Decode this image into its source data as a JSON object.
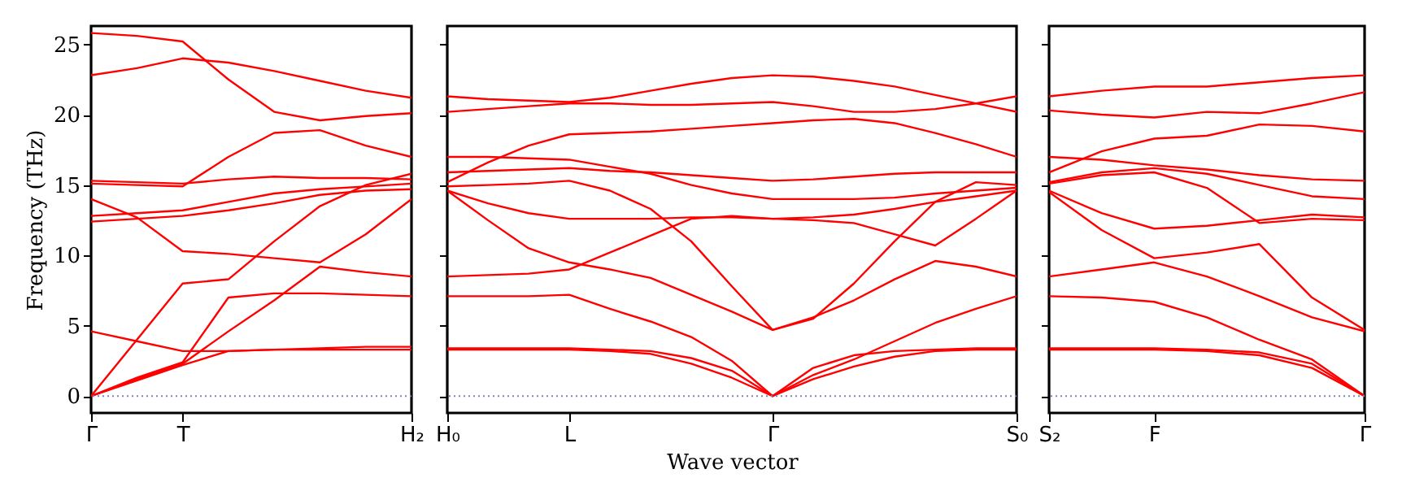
{
  "chart_data": [
    {
      "type": "line",
      "ylabel": "Frequency (THz)",
      "categories": [
        "Γ",
        null,
        "T",
        null,
        null,
        null,
        null,
        "H₂"
      ],
      "ylim": [
        -1.2,
        26.3
      ],
      "yticks": [
        0,
        5,
        10,
        15,
        20,
        25
      ],
      "ref_lines": [
        {
          "axis": "y",
          "value": 0,
          "color": "#8080c0",
          "line_style": "dotted"
        }
      ],
      "series": [
        {
          "color": "#ff0000",
          "values": [
            0,
            1.1,
            2.2,
            3.2,
            3.3,
            3.3,
            3.3,
            3.3
          ]
        },
        {
          "color": "#ff0000",
          "values": [
            0,
            1.2,
            2.3,
            4.6,
            6.8,
            9.2,
            8.8,
            8.5
          ]
        },
        {
          "color": "#ff0000",
          "values": [
            0,
            4.0,
            8.0,
            8.3,
            11.0,
            13.5,
            15.0,
            15.8
          ]
        },
        {
          "color": "#ff0000",
          "values": [
            4.6,
            3.9,
            3.2,
            3.2,
            3.3,
            3.4,
            3.5,
            3.5
          ]
        },
        {
          "color": "#ff0000",
          "values": [
            0,
            1.3,
            2.4,
            7.0,
            7.3,
            7.3,
            7.2,
            7.1
          ]
        },
        {
          "color": "#ff0000",
          "values": [
            14.0,
            12.7,
            10.3,
            10.1,
            9.8,
            9.5,
            11.5,
            14.0
          ]
        },
        {
          "color": "#ff0000",
          "values": [
            12.4,
            12.6,
            12.8,
            13.2,
            13.7,
            14.3,
            14.6,
            14.7
          ]
        },
        {
          "color": "#ff0000",
          "values": [
            12.8,
            13.0,
            13.2,
            13.8,
            14.4,
            14.7,
            14.9,
            15.1
          ]
        },
        {
          "color": "#ff0000",
          "values": [
            15.3,
            15.2,
            15.1,
            15.4,
            15.6,
            15.5,
            15.5,
            15.4
          ]
        },
        {
          "color": "#ff0000",
          "values": [
            15.1,
            15.0,
            14.9,
            17.0,
            18.7,
            18.9,
            17.8,
            17.0
          ]
        },
        {
          "color": "#ff0000",
          "values": [
            22.8,
            23.3,
            24.0,
            23.7,
            23.1,
            22.4,
            21.7,
            21.2
          ]
        },
        {
          "color": "#ff0000",
          "values": [
            25.8,
            25.6,
            25.2,
            22.5,
            20.2,
            19.6,
            19.9,
            20.1
          ]
        }
      ]
    },
    {
      "type": "line",
      "xlabel": "Wave vector",
      "tick_labels": "x",
      "categories": [
        "H₀",
        null,
        null,
        "L",
        null,
        null,
        null,
        null,
        "Γ",
        null,
        null,
        null,
        null,
        null,
        "S₀"
      ],
      "ylim": [
        -1.2,
        26.3
      ],
      "yticks": [
        0,
        5,
        10,
        15,
        20,
        25
      ],
      "ref_lines": [
        {
          "axis": "y",
          "value": 0,
          "color": "#8080c0",
          "line_style": "dotted"
        }
      ],
      "series": [
        {
          "color": "#ff0000",
          "values": [
            21.3,
            21.1,
            21.0,
            20.9,
            21.2,
            21.7,
            22.2,
            22.6,
            22.8,
            22.7,
            22.4,
            22.0,
            21.4,
            20.8,
            20.2
          ]
        },
        {
          "color": "#ff0000",
          "values": [
            20.2,
            20.4,
            20.6,
            20.8,
            20.8,
            20.7,
            20.7,
            20.8,
            20.9,
            20.6,
            20.2,
            20.2,
            20.4,
            20.8,
            21.3
          ]
        },
        {
          "color": "#ff0000",
          "values": [
            15.2,
            16.6,
            17.8,
            18.6,
            18.7,
            18.8,
            19.0,
            19.2,
            19.4,
            19.6,
            19.7,
            19.4,
            18.7,
            17.9,
            17.0
          ]
        },
        {
          "color": "#ff0000",
          "values": [
            17.0,
            17.0,
            16.9,
            16.8,
            16.3,
            15.8,
            15.0,
            14.4,
            14.0,
            14.0,
            14.0,
            14.1,
            14.4,
            14.6,
            14.8
          ]
        },
        {
          "color": "#ff0000",
          "values": [
            15.9,
            16.0,
            16.1,
            16.2,
            16.0,
            15.9,
            15.7,
            15.5,
            15.3,
            15.4,
            15.6,
            15.8,
            15.9,
            15.9,
            15.9
          ]
        },
        {
          "color": "#ff0000",
          "values": [
            14.9,
            15.0,
            15.1,
            15.3,
            14.6,
            13.3,
            11.0,
            7.8,
            4.7,
            5.5,
            8.0,
            11.0,
            13.8,
            15.2,
            15.0
          ]
        },
        {
          "color": "#ff0000",
          "values": [
            14.6,
            13.7,
            13.0,
            12.6,
            12.6,
            12.6,
            12.7,
            12.7,
            12.6,
            12.5,
            12.3,
            11.5,
            10.7,
            12.6,
            14.6
          ]
        },
        {
          "color": "#ff0000",
          "values": [
            14.6,
            12.5,
            10.5,
            9.5,
            9.0,
            8.4,
            7.2,
            6.0,
            4.7,
            5.6,
            6.8,
            8.3,
            9.6,
            9.2,
            8.5
          ]
        },
        {
          "color": "#ff0000",
          "values": [
            8.5,
            8.6,
            8.7,
            9.0,
            10.2,
            11.4,
            12.6,
            12.8,
            12.6,
            12.7,
            12.9,
            13.3,
            13.8,
            14.2,
            14.6
          ]
        },
        {
          "color": "#ff0000",
          "values": [
            7.1,
            7.1,
            7.1,
            7.2,
            6.2,
            5.3,
            4.2,
            2.5,
            0,
            1.5,
            2.6,
            3.9,
            5.2,
            6.2,
            7.1
          ]
        },
        {
          "color": "#ff0000",
          "values": [
            3.4,
            3.4,
            3.4,
            3.4,
            3.3,
            3.2,
            2.7,
            1.8,
            0,
            2.0,
            2.9,
            3.2,
            3.3,
            3.4,
            3.4
          ]
        },
        {
          "color": "#ff0000",
          "values": [
            3.3,
            3.3,
            3.3,
            3.3,
            3.2,
            3.0,
            2.3,
            1.3,
            0,
            1.2,
            2.1,
            2.8,
            3.2,
            3.3,
            3.3
          ]
        }
      ]
    },
    {
      "type": "line",
      "tick_labels": "x",
      "categories": [
        "S₂",
        null,
        "F",
        null,
        null,
        null,
        "Γ"
      ],
      "ylim": [
        -1.2,
        26.3
      ],
      "yticks": [
        0,
        5,
        10,
        15,
        20,
        25
      ],
      "ref_lines": [
        {
          "axis": "y",
          "value": 0,
          "color": "#8080c0",
          "line_style": "dotted"
        }
      ],
      "series": [
        {
          "color": "#ff0000",
          "values": [
            21.3,
            21.7,
            22.0,
            22.0,
            22.3,
            22.6,
            22.8
          ]
        },
        {
          "color": "#ff0000",
          "values": [
            20.3,
            20.0,
            19.8,
            20.2,
            20.1,
            20.8,
            21.6
          ]
        },
        {
          "color": "#ff0000",
          "values": [
            15.9,
            17.4,
            18.3,
            18.5,
            19.3,
            19.2,
            18.8
          ]
        },
        {
          "color": "#ff0000",
          "values": [
            17.0,
            16.8,
            16.4,
            16.1,
            15.7,
            15.4,
            15.3
          ]
        },
        {
          "color": "#ff0000",
          "values": [
            15.2,
            15.9,
            16.2,
            15.8,
            15.0,
            14.2,
            14.0
          ]
        },
        {
          "color": "#ff0000",
          "values": [
            15.1,
            15.7,
            15.9,
            14.8,
            12.3,
            12.6,
            12.5
          ]
        },
        {
          "color": "#ff0000",
          "values": [
            14.6,
            13.0,
            11.9,
            12.1,
            12.5,
            12.9,
            12.7
          ]
        },
        {
          "color": "#ff0000",
          "values": [
            14.5,
            11.8,
            9.8,
            10.2,
            10.8,
            7.0,
            4.7
          ]
        },
        {
          "color": "#ff0000",
          "values": [
            8.5,
            9.0,
            9.5,
            8.5,
            7.1,
            5.6,
            4.6
          ]
        },
        {
          "color": "#ff0000",
          "values": [
            7.1,
            7.0,
            6.7,
            5.6,
            4.0,
            2.6,
            0
          ]
        },
        {
          "color": "#ff0000",
          "values": [
            3.4,
            3.4,
            3.4,
            3.3,
            3.1,
            2.3,
            0
          ]
        },
        {
          "color": "#ff0000",
          "values": [
            3.3,
            3.3,
            3.3,
            3.2,
            2.9,
            2.0,
            0
          ]
        }
      ]
    }
  ]
}
